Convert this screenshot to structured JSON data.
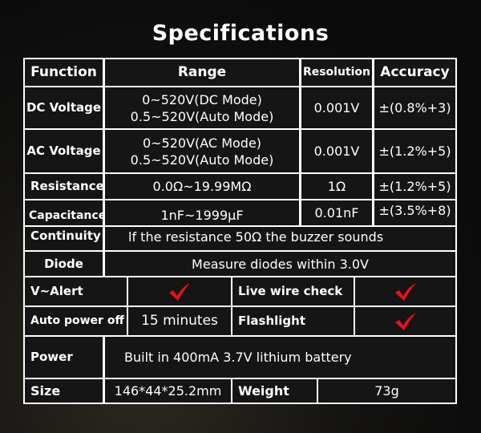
{
  "title": "Specifications",
  "header": {
    "function": "Function",
    "range": "Range",
    "resolution": "Resolution",
    "accuracy": "Accuracy"
  },
  "rows": [
    {
      "function": "DC Voltage",
      "range1": "0~520V(DC Mode)",
      "range2": "0.5~520V(Auto Mode)",
      "resolution": "0.001V",
      "accuracy": "±(0.8%+3)"
    },
    {
      "function": "AC Voltage",
      "range1": "0~520V(AC Mode)",
      "range2": "0.5~520V(Auto Mode)",
      "resolution": "0.001V",
      "accuracy": "±(1.2%+5)"
    },
    {
      "function": "Resistance",
      "range": "0.0Ω~19.99MΩ",
      "resolution": "1Ω",
      "accuracy": "±(1.2%+5)"
    },
    {
      "function": "Capacitance",
      "range": "1nF~1999μF",
      "resolution": "0.01nF",
      "accuracy": "±(3.5%+8)"
    }
  ],
  "continuity": {
    "label": "Continuity",
    "value": "lf the resistance 50Ω the buzzer sounds"
  },
  "diode": {
    "label": "Diode",
    "value": "Measure diodes within 3.0V"
  },
  "v_alert": {
    "label": "V~Alert",
    "value": "check-icon"
  },
  "live_wire": {
    "label": "Live wire check",
    "value": "check-icon"
  },
  "auto_power": {
    "label": "Auto power off",
    "value": "15 minutes"
  },
  "flashlight": {
    "label": "Flashlight",
    "value": "check-icon"
  },
  "power": {
    "label": "Power",
    "value": "Built in 400mA 3.7V lithium battery"
  },
  "size": {
    "label": "Size",
    "value": "146*44*25.2mm"
  },
  "weight": {
    "label": "Weight",
    "value": "73g"
  },
  "colors": {
    "check": "#e8121a",
    "border": "#ffffff",
    "cell": "#151515"
  }
}
